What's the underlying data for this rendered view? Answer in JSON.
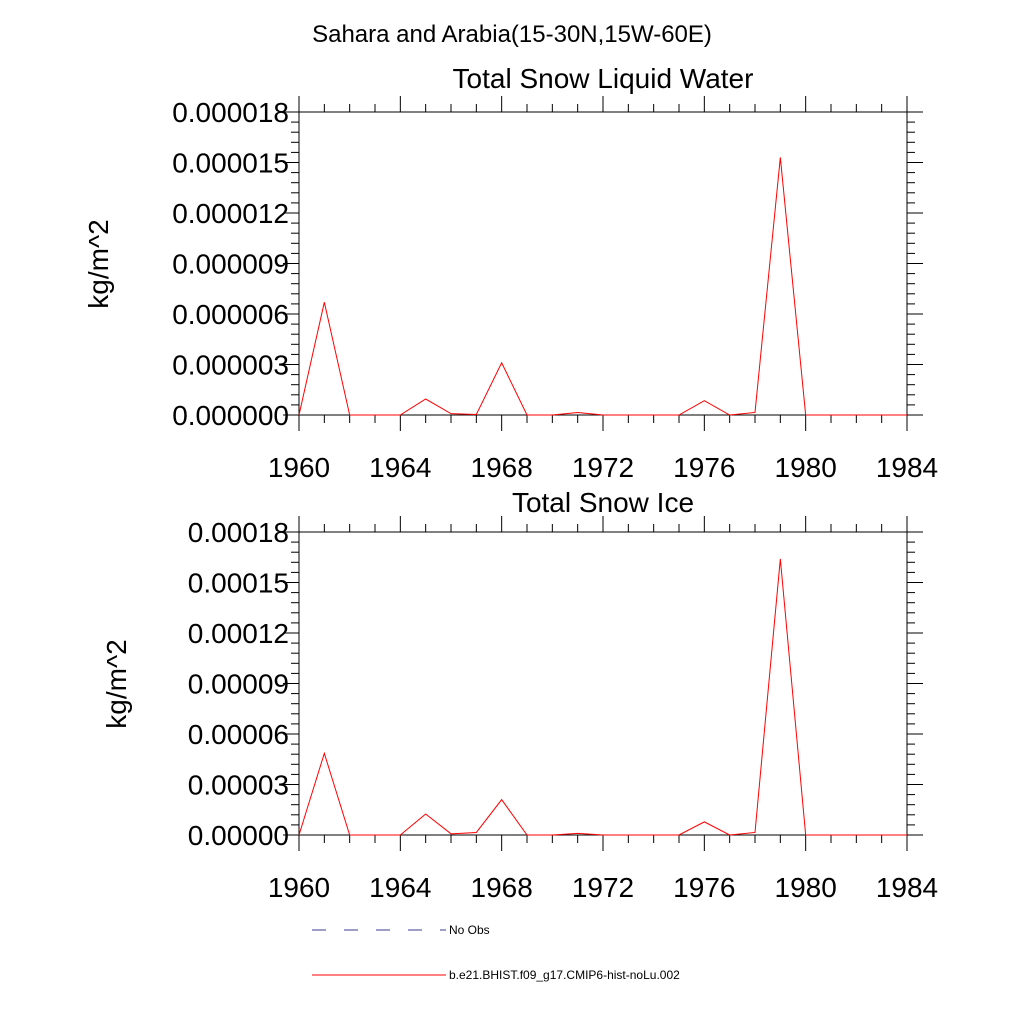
{
  "figure": {
    "suptitle": "Sahara and Arabia(15-30N,15W-60E)",
    "colors": {
      "model": "#ff0000",
      "obs": "#3b3b8f",
      "axis": "#000000"
    }
  },
  "legend": {
    "items": [
      {
        "label": "No Obs",
        "style": "dashed",
        "color": "#3b3b8f"
      },
      {
        "label": "b.e21.BHIST.f09_g17.CMIP6-hist-noLu.002",
        "style": "solid",
        "color": "#ff0000"
      }
    ]
  },
  "chart_data": [
    {
      "type": "line",
      "title": "Total Snow Liquid Water",
      "xlabel": "",
      "ylabel": "kg/m^2",
      "xlim": [
        1960,
        1984
      ],
      "ylim": [
        0,
        1.8e-05
      ],
      "xticks": [
        1960,
        1964,
        1968,
        1972,
        1976,
        1980,
        1984
      ],
      "xtick_labels": [
        "1960",
        "1964",
        "1968",
        "1972",
        "1976",
        "1980",
        "1984"
      ],
      "yticks": [
        0,
        3e-06,
        6e-06,
        9e-06,
        1.2e-05,
        1.5e-05,
        1.8e-05
      ],
      "ytick_labels": [
        "0.000000",
        "0.000003",
        "0.000006",
        "0.000009",
        "0.000012",
        "0.000015",
        "0.000018"
      ],
      "grid": false,
      "x": [
        1960,
        1961,
        1962,
        1963,
        1964,
        1965,
        1966,
        1967,
        1968,
        1969,
        1970,
        1971,
        1972,
        1973,
        1974,
        1975,
        1976,
        1977,
        1978,
        1979,
        1980,
        1981,
        1982,
        1983,
        1984
      ],
      "series": [
        {
          "name": "b.e21.BHIST.f09_g17.CMIP6-hist-noLu.002",
          "color": "#ff0000",
          "values": [
            0,
            6.7e-06,
            0,
            0,
            0,
            9.5e-07,
            8e-08,
            3e-08,
            3.1e-06,
            0,
            0,
            1.5e-07,
            0,
            0,
            0,
            0,
            8.5e-07,
            0,
            1.5e-07,
            1.53e-05,
            0,
            0,
            0,
            0,
            0
          ]
        }
      ]
    },
    {
      "type": "line",
      "title": "Total Snow Ice",
      "xlabel": "",
      "ylabel": "kg/m^2",
      "xlim": [
        1960,
        1984
      ],
      "ylim": [
        0,
        0.00018
      ],
      "xticks": [
        1960,
        1964,
        1968,
        1972,
        1976,
        1980,
        1984
      ],
      "xtick_labels": [
        "1960",
        "1964",
        "1968",
        "1972",
        "1976",
        "1980",
        "1984"
      ],
      "yticks": [
        0,
        3e-05,
        6e-05,
        9e-05,
        0.00012,
        0.00015,
        0.00018
      ],
      "ytick_labels": [
        "0.00000",
        "0.00003",
        "0.00006",
        "0.00009",
        "0.00012",
        "0.00015",
        "0.00018"
      ],
      "grid": false,
      "x": [
        1960,
        1961,
        1962,
        1963,
        1964,
        1965,
        1966,
        1967,
        1968,
        1969,
        1970,
        1971,
        1972,
        1973,
        1974,
        1975,
        1976,
        1977,
        1978,
        1979,
        1980,
        1981,
        1982,
        1983,
        1984
      ],
      "series": [
        {
          "name": "b.e21.BHIST.f09_g17.CMIP6-hist-noLu.002",
          "color": "#ff0000",
          "values": [
            0,
            4.85e-05,
            0,
            0,
            0,
            1.25e-05,
            7e-07,
            1.5e-06,
            2.1e-05,
            0,
            0,
            1e-06,
            0,
            0,
            0,
            0,
            7.8e-06,
            0,
            1.5e-06,
            0.000164,
            0,
            0,
            0,
            0,
            0
          ]
        }
      ]
    }
  ]
}
